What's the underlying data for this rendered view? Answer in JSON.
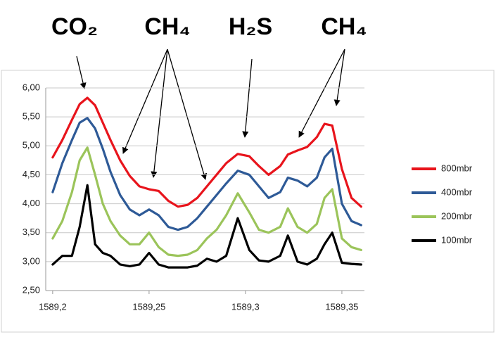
{
  "chart_data": {
    "type": "line",
    "annotations": [
      "CO₂",
      "CH₄",
      "H₂S",
      "CH₄"
    ],
    "x": [
      1589.2,
      1589.205,
      1589.21,
      1589.214,
      1589.218,
      1589.222,
      1589.226,
      1589.23,
      1589.235,
      1589.24,
      1589.245,
      1589.25,
      1589.255,
      1589.26,
      1589.265,
      1589.27,
      1589.275,
      1589.28,
      1589.285,
      1589.29,
      1589.296,
      1589.302,
      1589.307,
      1589.312,
      1589.318,
      1589.322,
      1589.327,
      1589.332,
      1589.337,
      1589.341,
      1589.345,
      1589.35,
      1589.355,
      1589.36
    ],
    "series": [
      {
        "name": "800mbr",
        "color": "#e8141c",
        "values": [
          4.8,
          5.1,
          5.45,
          5.72,
          5.83,
          5.7,
          5.4,
          5.1,
          4.75,
          4.48,
          4.3,
          4.25,
          4.22,
          4.05,
          3.95,
          3.98,
          4.1,
          4.3,
          4.5,
          4.7,
          4.86,
          4.82,
          4.65,
          4.5,
          4.65,
          4.85,
          4.92,
          4.98,
          5.15,
          5.38,
          5.35,
          4.6,
          4.1,
          3.95
        ]
      },
      {
        "name": "400mbr",
        "color": "#2e5a97",
        "values": [
          4.2,
          4.7,
          5.1,
          5.4,
          5.48,
          5.3,
          4.95,
          4.55,
          4.15,
          3.9,
          3.8,
          3.9,
          3.8,
          3.6,
          3.55,
          3.6,
          3.75,
          3.95,
          4.15,
          4.35,
          4.57,
          4.5,
          4.3,
          4.1,
          4.2,
          4.45,
          4.4,
          4.3,
          4.45,
          4.8,
          4.95,
          4.0,
          3.7,
          3.63
        ]
      },
      {
        "name": "200mbr",
        "color": "#9bc45a",
        "values": [
          3.4,
          3.7,
          4.2,
          4.75,
          4.97,
          4.5,
          4.0,
          3.7,
          3.45,
          3.3,
          3.3,
          3.5,
          3.25,
          3.12,
          3.1,
          3.12,
          3.2,
          3.4,
          3.55,
          3.8,
          4.18,
          3.85,
          3.55,
          3.5,
          3.6,
          3.92,
          3.6,
          3.5,
          3.65,
          4.1,
          4.25,
          3.4,
          3.25,
          3.2
        ]
      },
      {
        "name": "100mbr",
        "color": "#000000",
        "values": [
          2.95,
          3.1,
          3.1,
          3.6,
          4.32,
          3.3,
          3.15,
          3.1,
          2.95,
          2.92,
          2.95,
          3.15,
          2.95,
          2.9,
          2.9,
          2.9,
          2.93,
          3.05,
          3.0,
          3.1,
          3.75,
          3.2,
          3.02,
          3.0,
          3.1,
          3.45,
          3.0,
          2.95,
          3.05,
          3.3,
          3.5,
          2.98,
          2.96,
          2.95
        ]
      }
    ],
    "xlim": [
      1589.1964,
      1589.3617
    ],
    "xticks": [
      {
        "value": 1589.2,
        "label": "1589,2"
      },
      {
        "value": 1589.25,
        "label": "1589,25"
      },
      {
        "value": 1589.3,
        "label": "1589,3"
      },
      {
        "value": 1589.35,
        "label": "1589,35"
      }
    ],
    "ylim": [
      2.5,
      6.0
    ],
    "yticks": [
      {
        "value": 2.5,
        "label": "2,50"
      },
      {
        "value": 3.0,
        "label": "3,00"
      },
      {
        "value": 3.5,
        "label": "3,50"
      },
      {
        "value": 4.0,
        "label": "4,00"
      },
      {
        "value": 4.5,
        "label": "4,50"
      },
      {
        "value": 5.0,
        "label": "5,00"
      },
      {
        "value": 5.5,
        "label": "5,50"
      },
      {
        "value": 6.0,
        "label": "6,00"
      }
    ],
    "grid": true,
    "legend": "right"
  }
}
